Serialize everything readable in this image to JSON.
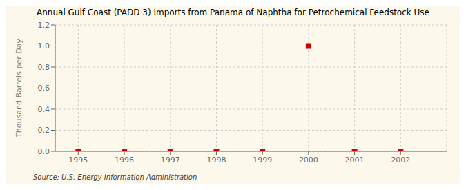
{
  "chart_data": {
    "type": "scatter",
    "title": "Annual Gulf Coast (PADD 3) Imports from Panama of Naphtha for Petrochemical Feedstock Use",
    "y_label": "Thousand Barrels per Day",
    "annotations": [
      "Source: U.S. Energy Information Administration"
    ],
    "x": [
      1995,
      1996,
      1997,
      1998,
      1999,
      2000,
      2001,
      2002
    ],
    "values": [
      0,
      0,
      0,
      0,
      0,
      1.0,
      0,
      0
    ],
    "color": "#cc0000",
    "marker": "square",
    "xlim": [
      1994.5,
      2003.0
    ],
    "xticks": [
      1995,
      1996,
      1997,
      1998,
      1999,
      2000,
      2001,
      2002
    ],
    "ylim": [
      0,
      1.2
    ],
    "yticks": [
      {
        "value": 0.0,
        "label": "0.0"
      },
      0.2,
      0.4,
      0.6,
      0.8,
      {
        "value": 1.0,
        "label": "1.0"
      },
      1.2
    ],
    "grid": true
  }
}
